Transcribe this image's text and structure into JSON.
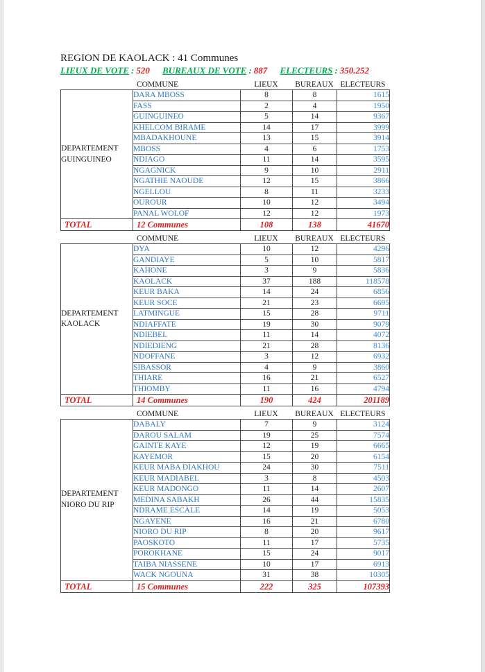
{
  "page": {
    "title": "REGION DE KAOLACK : 41 Communes"
  },
  "summary": {
    "items": [
      {
        "label": "LIEUX DE VOTE",
        "separator": ":",
        "value": "520"
      },
      {
        "label": "BUREAUX DE VOTE",
        "separator": ":",
        "value": "887"
      },
      {
        "label": "ELECTEURS",
        "separator": ":",
        "value": "350.252"
      }
    ]
  },
  "table_columns": [
    "COMMUNE",
    "LIEUX",
    "BUREAUX",
    "ELECTEURS"
  ],
  "departments": [
    {
      "name_lines": [
        "DEPARTEMENT",
        "GUINGUINEO"
      ],
      "rows": [
        [
          "DARA MBOSS",
          "8",
          "8",
          "1615"
        ],
        [
          "FASS",
          "2",
          "4",
          "1950"
        ],
        [
          "GUINGUINEO",
          "5",
          "14",
          "9367"
        ],
        [
          "KHELCOM BIRAME",
          "14",
          "17",
          "3999"
        ],
        [
          "MBADAKHOUNE",
          "13",
          "15",
          "3914"
        ],
        [
          "MBOSS",
          "4",
          "6",
          "1753"
        ],
        [
          "NDIAGO",
          "11",
          "14",
          "3595"
        ],
        [
          "NGAGNICK",
          "9",
          "10",
          "2911"
        ],
        [
          "NGATHIE NAOUDE",
          "12",
          "15",
          "3866"
        ],
        [
          "NGELLOU",
          "8",
          "11",
          "3233"
        ],
        [
          "OUROUR",
          "10",
          "12",
          "3494"
        ],
        [
          "PANAL WOLOF",
          "12",
          "12",
          "1973"
        ]
      ],
      "total": [
        "TOTAL",
        "12 Communes",
        "108",
        "138",
        "41670"
      ]
    },
    {
      "name_lines": [
        "DEPARTEMENT",
        "KAOLACK"
      ],
      "rows": [
        [
          "DYA",
          "10",
          "12",
          "4296"
        ],
        [
          "GANDIAYE",
          "5",
          "10",
          "5817"
        ],
        [
          "KAHONE",
          "3",
          "9",
          "5836"
        ],
        [
          "KAOLACK",
          "37",
          "188",
          "118578"
        ],
        [
          "KEUR BAKA",
          "14",
          "24",
          "6856"
        ],
        [
          "KEUR SOCE",
          "21",
          "23",
          "6695"
        ],
        [
          "LATMINGUE",
          "15",
          "28",
          "9711"
        ],
        [
          "NDIAFFATE",
          "19",
          "30",
          "9079"
        ],
        [
          "NDIEBEL",
          "11",
          "14",
          "4072"
        ],
        [
          "NDIEDIENG",
          "21",
          "28",
          "8136"
        ],
        [
          "NDOFFANE",
          "3",
          "12",
          "6932"
        ],
        [
          "SIBASSOR",
          "4",
          "9",
          "3860"
        ],
        [
          "THIARE",
          "16",
          "21",
          "6527"
        ],
        [
          "THIOMBY",
          "11",
          "16",
          "4794"
        ]
      ],
      "total": [
        "TOTAL",
        "14 Communes",
        "190",
        "424",
        "201189"
      ]
    },
    {
      "name_lines": [
        "DEPARTEMENT",
        "NIORO DU RIP"
      ],
      "rows": [
        [
          "DABALY",
          "7",
          "9",
          "3124"
        ],
        [
          "DAROU SALAM",
          "19",
          "25",
          "7574"
        ],
        [
          "GAINTE KAYE",
          "12",
          "19",
          "6665"
        ],
        [
          "KAYEMOR",
          "15",
          "20",
          "6154"
        ],
        [
          "KEUR MABA DIAKHOU",
          "24",
          "30",
          "7511"
        ],
        [
          "KEUR MADIABEL",
          "3",
          "8",
          "4503"
        ],
        [
          "KEUR MADONGO",
          "11",
          "14",
          "2607"
        ],
        [
          "MEDINA SABAKH",
          "26",
          "44",
          "15835"
        ],
        [
          "NDRAME ESCALE",
          "14",
          "19",
          "5053"
        ],
        [
          "NGAYENE",
          "16",
          "21",
          "6780"
        ],
        [
          "NIORO DU RIP",
          "8",
          "20",
          "9617"
        ],
        [
          "PAOSKOTO",
          "11",
          "17",
          "5735"
        ],
        [
          "POROKHANE",
          "15",
          "24",
          "9017"
        ],
        [
          "TAIBA NIASSENE",
          "10",
          "17",
          "6913"
        ],
        [
          "WACK NGOUNA",
          "31",
          "38",
          "10305"
        ]
      ],
      "total": [
        "TOTAL",
        "15 Communes",
        "222",
        "325",
        "107393"
      ]
    }
  ],
  "colors": {
    "commune_text": "#2E77C2",
    "electeurs_text": "#3E8CCF",
    "summary_label_green": "#00AF50",
    "summary_value_red": "#E01F1F",
    "total_red": "#E01F1F",
    "table_border": "#474747"
  }
}
